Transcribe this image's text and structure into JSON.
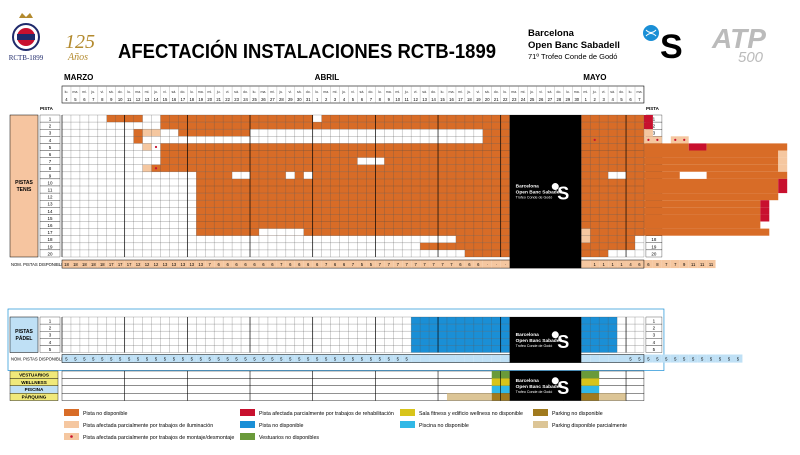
{
  "header": {
    "title": "AFECTACIÓN INSTALACIONES RCTB-1899",
    "club_label": "RCTB-1899",
    "anniversary_number": "125",
    "anniversary_word": "Años",
    "event_line1": "Barcelona",
    "event_line2": "Open Banc Sabadell",
    "event_line3": "71º Trofeo Conde de Godó",
    "atp_label": "ATP",
    "atp_500": "500"
  },
  "months": [
    "MARZO",
    "ABRIL",
    "MAYO"
  ],
  "pista_header": "PISTA",
  "sections": {
    "tenis": {
      "label_line1": "PISTAS",
      "label_line2": "TENIS"
    },
    "padel": {
      "label_line1": "PISTAS",
      "label_line2": "PÁDEL"
    },
    "disponibles_tenis": "NOM. PISTAS DISPONIBLES",
    "disponibles_padel": "NOM. PISTAS DISPONIBLES"
  },
  "facilities": [
    "VESTUARIOS",
    "WELLNESS",
    "PISCINA",
    "PÀRQUING"
  ],
  "black_block": {
    "line1": "Barcelona",
    "line2": "Open Banc Sabadell",
    "line3": "Trofeo Conde de Godó"
  },
  "colors": {
    "orange": "#d86c27",
    "peach": "#f5c7a0",
    "red": "#c8102e",
    "blue": "#1a8fd6",
    "green": "#6a9a3a",
    "yellow": "#d8c41a",
    "cyan": "#31b8e6",
    "brown": "#a07a1e",
    "tan": "#dcc596",
    "dark": "#000000",
    "rowlabel_tenis": "#f6c5a0",
    "rowlabel_padel": "#bfe0f5"
  },
  "chart_data": {
    "type": "table",
    "days": [
      {
        "w": "lu.",
        "d": "4"
      },
      {
        "w": "ma.",
        "d": "5"
      },
      {
        "w": "mi.",
        "d": "6"
      },
      {
        "w": "ju.",
        "d": "7"
      },
      {
        "w": "vi.",
        "d": "8"
      },
      {
        "w": "sá.",
        "d": "9"
      },
      {
        "w": "do.",
        "d": "10"
      },
      {
        "w": "lu.",
        "d": "11"
      },
      {
        "w": "ma.",
        "d": "12"
      },
      {
        "w": "mi.",
        "d": "13"
      },
      {
        "w": "ju.",
        "d": "14"
      },
      {
        "w": "vi.",
        "d": "15"
      },
      {
        "w": "sá.",
        "d": "16"
      },
      {
        "w": "do.",
        "d": "17"
      },
      {
        "w": "lu.",
        "d": "18"
      },
      {
        "w": "ma.",
        "d": "19"
      },
      {
        "w": "mi.",
        "d": "20"
      },
      {
        "w": "ju.",
        "d": "21"
      },
      {
        "w": "vi.",
        "d": "22"
      },
      {
        "w": "sá.",
        "d": "23"
      },
      {
        "w": "do.",
        "d": "24"
      },
      {
        "w": "lu.",
        "d": "25"
      },
      {
        "w": "ma.",
        "d": "26"
      },
      {
        "w": "mi.",
        "d": "27"
      },
      {
        "w": "ju.",
        "d": "28"
      },
      {
        "w": "vi.",
        "d": "29"
      },
      {
        "w": "sá.",
        "d": "30"
      },
      {
        "w": "do.",
        "d": "31"
      },
      {
        "w": "lu.",
        "d": "1"
      },
      {
        "w": "ma.",
        "d": "2"
      },
      {
        "w": "mi.",
        "d": "3"
      },
      {
        "w": "ju.",
        "d": "4"
      },
      {
        "w": "vi.",
        "d": "5"
      },
      {
        "w": "sá.",
        "d": "6"
      },
      {
        "w": "do.",
        "d": "7"
      },
      {
        "w": "lu.",
        "d": "8"
      },
      {
        "w": "ma.",
        "d": "9"
      },
      {
        "w": "mi.",
        "d": "10"
      },
      {
        "w": "ju.",
        "d": "11"
      },
      {
        "w": "vi.",
        "d": "12"
      },
      {
        "w": "sá.",
        "d": "13"
      },
      {
        "w": "do.",
        "d": "14"
      },
      {
        "w": "lu.",
        "d": "15"
      },
      {
        "w": "ma.",
        "d": "16"
      },
      {
        "w": "mi.",
        "d": "17"
      },
      {
        "w": "ju.",
        "d": "18"
      },
      {
        "w": "vi.",
        "d": "19"
      },
      {
        "w": "sá.",
        "d": "20"
      },
      {
        "w": "do.",
        "d": "21"
      },
      {
        "w": "lu.",
        "d": "22"
      },
      {
        "w": "ma.",
        "d": "23"
      },
      {
        "w": "mi.",
        "d": "24"
      },
      {
        "w": "ju.",
        "d": "25"
      },
      {
        "w": "vi.",
        "d": "26"
      },
      {
        "w": "sá.",
        "d": "27"
      },
      {
        "w": "do.",
        "d": "28"
      },
      {
        "w": "lu.",
        "d": "29"
      },
      {
        "w": "ma.",
        "d": "30"
      },
      {
        "w": "mi.",
        "d": "1"
      },
      {
        "w": "ju.",
        "d": "2"
      },
      {
        "w": "vi.",
        "d": "3"
      },
      {
        "w": "sá.",
        "d": "4"
      },
      {
        "w": "do.",
        "d": "5"
      },
      {
        "w": "lu.",
        "d": "6"
      },
      {
        "w": "ma.",
        "d": "7"
      }
    ],
    "month_start_index": {
      "MARZO": 0,
      "ABRIL": 28,
      "MAYO": 58
    },
    "tenis_courts": [
      "1",
      "2",
      "3",
      "4",
      "5",
      "6",
      "7",
      "8",
      "9",
      "10",
      "11",
      "12",
      "13",
      "14",
      "15",
      "16",
      "17",
      "18",
      "19",
      "20"
    ],
    "padel_courts": [
      "1",
      "2",
      "3",
      "4",
      "5"
    ],
    "tournament_block": {
      "start_index": 50,
      "end_index": 58
    },
    "tenis_segments": [
      {
        "court": 0,
        "from": 5,
        "to": 8,
        "c": "orange"
      },
      {
        "court": 0,
        "from": 11,
        "to": 15,
        "c": "orange"
      },
      {
        "court": 0,
        "from": 16,
        "to": 27,
        "c": "orange"
      },
      {
        "court": 0,
        "from": 29,
        "to": 49,
        "c": "orange"
      },
      {
        "court": 0,
        "from": 58,
        "to": 64,
        "c": "orange"
      },
      {
        "court": 0,
        "from": 65,
        "to": 65,
        "c": "red"
      },
      {
        "court": 1,
        "from": 11,
        "to": 49,
        "c": "orange"
      },
      {
        "court": 1,
        "from": 58,
        "to": 64,
        "c": "orange"
      },
      {
        "court": 1,
        "from": 65,
        "to": 65,
        "c": "red"
      },
      {
        "court": 2,
        "from": 8,
        "to": 8,
        "c": "orange"
      },
      {
        "court": 2,
        "from": 9,
        "to": 10,
        "c": "peach"
      },
      {
        "court": 2,
        "from": 13,
        "to": 20,
        "c": "orange"
      },
      {
        "court": 2,
        "from": 47,
        "to": 49,
        "c": "orange"
      },
      {
        "court": 2,
        "from": 58,
        "to": 64,
        "c": "orange"
      },
      {
        "court": 2,
        "from": 65,
        "to": 65,
        "c": "peach"
      },
      {
        "court": 3,
        "from": 8,
        "to": 8,
        "c": "orange"
      },
      {
        "court": 3,
        "from": 47,
        "to": 49,
        "c": "orange"
      },
      {
        "court": 3,
        "from": 58,
        "to": 64,
        "c": "orange"
      },
      {
        "court": 3,
        "from": 65,
        "to": 66,
        "c": "peach"
      },
      {
        "court": 3,
        "from": 68,
        "to": 69,
        "c": "peach"
      },
      {
        "court": 4,
        "from": 9,
        "to": 9,
        "c": "peach"
      },
      {
        "court": 4,
        "from": 11,
        "to": 49,
        "c": "orange"
      },
      {
        "court": 4,
        "from": 58,
        "to": 69,
        "c": "orange"
      },
      {
        "court": 4,
        "from": 70,
        "to": 71,
        "c": "red"
      },
      {
        "court": 4,
        "from": 72,
        "to": 80,
        "c": "orange"
      },
      {
        "court": 5,
        "from": 11,
        "to": 49,
        "c": "orange"
      },
      {
        "court": 5,
        "from": 58,
        "to": 79,
        "c": "orange"
      },
      {
        "court": 5,
        "from": 80,
        "to": 80,
        "c": "peach"
      },
      {
        "court": 6,
        "from": 11,
        "to": 32,
        "c": "orange"
      },
      {
        "court": 6,
        "from": 36,
        "to": 49,
        "c": "orange"
      },
      {
        "court": 6,
        "from": 58,
        "to": 79,
        "c": "orange"
      },
      {
        "court": 6,
        "from": 80,
        "to": 80,
        "c": "peach"
      },
      {
        "court": 7,
        "from": 9,
        "to": 9,
        "c": "peach"
      },
      {
        "court": 7,
        "from": 10,
        "to": 49,
        "c": "orange"
      },
      {
        "court": 7,
        "from": 58,
        "to": 79,
        "c": "orange"
      },
      {
        "court": 7,
        "from": 80,
        "to": 80,
        "c": "peach"
      },
      {
        "court": 8,
        "from": 15,
        "to": 18,
        "c": "orange"
      },
      {
        "court": 8,
        "from": 21,
        "to": 24,
        "c": "orange"
      },
      {
        "court": 8,
        "from": 26,
        "to": 26,
        "c": "orange"
      },
      {
        "court": 8,
        "from": 28,
        "to": 49,
        "c": "orange"
      },
      {
        "court": 8,
        "from": 58,
        "to": 80,
        "c": "orange"
      },
      {
        "court": 9,
        "from": 15,
        "to": 49,
        "c": "orange"
      },
      {
        "court": 9,
        "from": 58,
        "to": 79,
        "c": "orange"
      },
      {
        "court": 9,
        "from": 80,
        "to": 80,
        "c": "red"
      },
      {
        "court": 10,
        "from": 15,
        "to": 49,
        "c": "orange"
      },
      {
        "court": 10,
        "from": 58,
        "to": 79,
        "c": "orange"
      },
      {
        "court": 10,
        "from": 80,
        "to": 80,
        "c": "red"
      },
      {
        "court": 11,
        "from": 15,
        "to": 49,
        "c": "orange"
      },
      {
        "court": 11,
        "from": 58,
        "to": 79,
        "c": "orange"
      },
      {
        "court": 12,
        "from": 15,
        "to": 49,
        "c": "orange"
      },
      {
        "court": 12,
        "from": 58,
        "to": 77,
        "c": "orange"
      },
      {
        "court": 12,
        "from": 78,
        "to": 78,
        "c": "red"
      },
      {
        "court": 13,
        "from": 15,
        "to": 49,
        "c": "orange"
      },
      {
        "court": 13,
        "from": 58,
        "to": 77,
        "c": "orange"
      },
      {
        "court": 13,
        "from": 78,
        "to": 78,
        "c": "red"
      },
      {
        "court": 14,
        "from": 15,
        "to": 49,
        "c": "orange"
      },
      {
        "court": 14,
        "from": 58,
        "to": 77,
        "c": "orange"
      },
      {
        "court": 14,
        "from": 78,
        "to": 78,
        "c": "red"
      },
      {
        "court": 15,
        "from": 15,
        "to": 49,
        "c": "orange"
      },
      {
        "court": 15,
        "from": 58,
        "to": 77,
        "c": "orange"
      },
      {
        "court": 16,
        "from": 15,
        "to": 49,
        "c": "orange"
      },
      {
        "court": 16,
        "from": 58,
        "to": 58,
        "c": "peach"
      },
      {
        "court": 16,
        "from": 59,
        "to": 78,
        "c": "orange"
      },
      {
        "court": 17,
        "from": 44,
        "to": 49,
        "c": "orange"
      },
      {
        "court": 17,
        "from": 58,
        "to": 58,
        "c": "peach"
      },
      {
        "court": 17,
        "from": 59,
        "to": 63,
        "c": "orange"
      },
      {
        "court": 18,
        "from": 40,
        "to": 49,
        "c": "orange"
      },
      {
        "court": 18,
        "from": 58,
        "to": 63,
        "c": "orange"
      },
      {
        "court": 19,
        "from": 45,
        "to": 49,
        "c": "orange"
      },
      {
        "court": 19,
        "from": 58,
        "to": 60,
        "c": "orange"
      }
    ],
    "tenis_white_gaps": [
      {
        "court": 3,
        "from": 13,
        "to": 13
      },
      {
        "court": 3,
        "from": 32,
        "to": 35
      },
      {
        "court": 8,
        "from": 19,
        "to": 20
      },
      {
        "court": 8,
        "from": 25,
        "to": 25
      },
      {
        "court": 8,
        "from": 27,
        "to": 27
      },
      {
        "court": 8,
        "from": 61,
        "to": 62
      },
      {
        "court": 8,
        "from": 69,
        "to": 71
      },
      {
        "court": 6,
        "from": 33,
        "to": 35
      },
      {
        "court": 16,
        "from": 22,
        "to": 26
      }
    ],
    "dots": [
      {
        "court": 4,
        "day": 10
      },
      {
        "court": 7,
        "day": 10
      },
      {
        "court": 3,
        "day": 59
      },
      {
        "court": 3,
        "day": 65
      },
      {
        "court": 3,
        "day": 66
      },
      {
        "court": 3,
        "day": 68
      },
      {
        "court": 3,
        "day": 69
      }
    ],
    "tenis_disponibles": [
      "18",
      "18",
      "18",
      "18",
      "18",
      "17",
      "17",
      "17",
      "12",
      "12",
      "12",
      "13",
      "13",
      "13",
      "13",
      "13",
      "7",
      "6",
      "6",
      "6",
      "6",
      "6",
      "6",
      "6",
      "7",
      "6",
      "6",
      "6",
      "6",
      "7",
      "6",
      "6",
      "7",
      "5",
      "5",
      "7",
      "7",
      "7",
      "7",
      "7",
      "7",
      "7",
      "7",
      "7",
      "6",
      "6",
      "6",
      "·",
      "·",
      "·",
      "",
      "",
      "",
      "",
      "",
      "",
      "",
      "",
      "",
      "1",
      "1",
      "1",
      "1",
      "4",
      "6",
      "6",
      "8",
      "7",
      "7",
      "9",
      "11",
      "11",
      "11"
    ],
    "padel_segments": [
      {
        "court": 0,
        "from": 39,
        "to": 49,
        "c": "blue"
      },
      {
        "court": 1,
        "from": 39,
        "to": 49,
        "c": "blue"
      },
      {
        "court": 2,
        "from": 39,
        "to": 49,
        "c": "blue"
      },
      {
        "court": 3,
        "from": 39,
        "to": 49,
        "c": "blue"
      },
      {
        "court": 4,
        "from": 39,
        "to": 49,
        "c": "blue"
      },
      {
        "court": 0,
        "from": 58,
        "to": 61,
        "c": "blue"
      },
      {
        "court": 1,
        "from": 58,
        "to": 61,
        "c": "blue"
      },
      {
        "court": 2,
        "from": 58,
        "to": 61,
        "c": "blue"
      },
      {
        "court": 3,
        "from": 58,
        "to": 61,
        "c": "blue"
      },
      {
        "court": 4,
        "from": 58,
        "to": 61,
        "c": "blue"
      }
    ],
    "padel_disponibles": [
      "5",
      "5",
      "5",
      "5",
      "5",
      "5",
      "5",
      "5",
      "5",
      "5",
      "5",
      "5",
      "5",
      "5",
      "5",
      "5",
      "5",
      "5",
      "5",
      "5",
      "5",
      "5",
      "5",
      "5",
      "5",
      "5",
      "5",
      "5",
      "5",
      "5",
      "5",
      "5",
      "5",
      "5",
      "5",
      "5",
      "5",
      "5",
      "5",
      "",
      "",
      "",
      "",
      "",
      "",
      "",
      "",
      "",
      "",
      "",
      "",
      "",
      "",
      "",
      "",
      "",
      "",
      "",
      "",
      "",
      "",
      "",
      "",
      "5",
      "5",
      "5",
      "5",
      "5",
      "5",
      "5",
      "5",
      "5",
      "5",
      "5",
      "5",
      "5"
    ],
    "facility_segments": [
      {
        "row": 0,
        "from": 48,
        "to": 49,
        "c": "green"
      },
      {
        "row": 0,
        "from": 58,
        "to": 59,
        "c": "green"
      },
      {
        "row": 1,
        "from": 48,
        "to": 49,
        "c": "yellow"
      },
      {
        "row": 1,
        "from": 58,
        "to": 59,
        "c": "yellow"
      },
      {
        "row": 2,
        "from": 48,
        "to": 49,
        "c": "cyan"
      },
      {
        "row": 2,
        "from": 58,
        "to": 59,
        "c": "cyan"
      },
      {
        "row": 3,
        "from": 43,
        "to": 47,
        "c": "tan"
      },
      {
        "row": 3,
        "from": 48,
        "to": 49,
        "c": "brown"
      },
      {
        "row": 3,
        "from": 58,
        "to": 59,
        "c": "brown"
      },
      {
        "row": 3,
        "from": 60,
        "to": 62,
        "c": "tan"
      }
    ],
    "legend": [
      {
        "c": "orange",
        "label": "Pista no disponible"
      },
      {
        "c": "peach",
        "label": "Pista afectada parcialmente por trabajos de iluminación"
      },
      {
        "c": "peach_dot",
        "label": "Pista afectada parcialmente por trabajos de montaje/desmontaje"
      },
      {
        "c": "red",
        "label": "Pista afectada parcialmente por trabajos de rehabilitación"
      },
      {
        "c": "blue",
        "label": "Pista no disponible"
      },
      {
        "c": "green",
        "label": "Vestuarios no disponibles"
      },
      {
        "c": "yellow",
        "label": "Sala fitness y edificio wellness no disponible"
      },
      {
        "c": "cyan",
        "label": "Piscina no disponible"
      },
      {
        "c": "brown",
        "label": "Parking no disponible"
      },
      {
        "c": "tan",
        "label": "Parking disponible parcialmente"
      }
    ]
  }
}
